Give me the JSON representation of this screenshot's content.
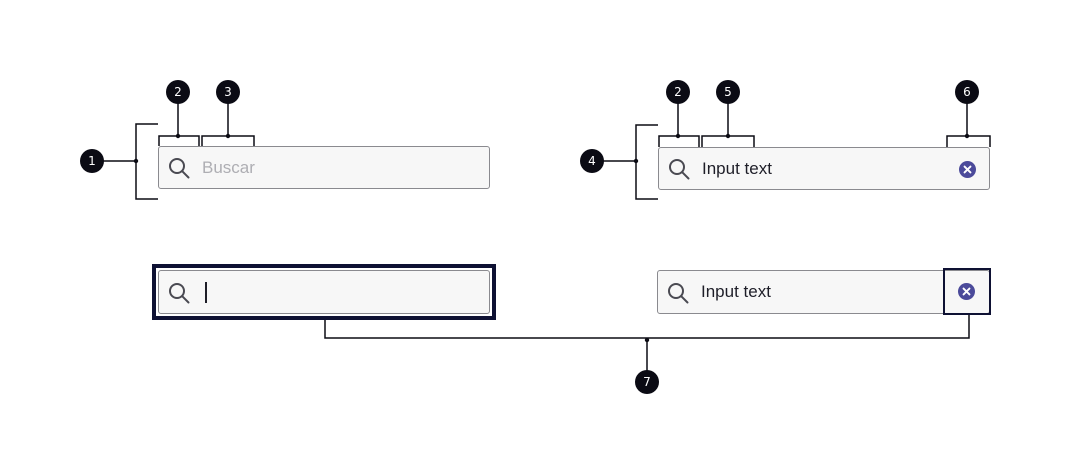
{
  "colors": {
    "badge": "#0b0b14",
    "line": "#0b0b14",
    "field_bg": "#f7f7f7",
    "field_border": "#8a8a8f",
    "focus_ring": "#0e1133",
    "clear_icon": "#4b4a9a",
    "placeholder": "#aeaeb3",
    "text": "#1e1e28"
  },
  "badges": [
    "1",
    "2",
    "3",
    "4",
    "2",
    "5",
    "6",
    "7"
  ],
  "fields": {
    "empty": {
      "icon": "search-icon",
      "placeholder": "Buscar"
    },
    "filled": {
      "icon": "search-icon",
      "value": "Input text",
      "clear_icon": "clear-circle-icon"
    },
    "focused": {
      "icon": "search-icon",
      "value": ""
    },
    "filled_clear_focused": {
      "icon": "search-icon",
      "value": "Input text",
      "clear_icon": "clear-circle-icon"
    }
  }
}
